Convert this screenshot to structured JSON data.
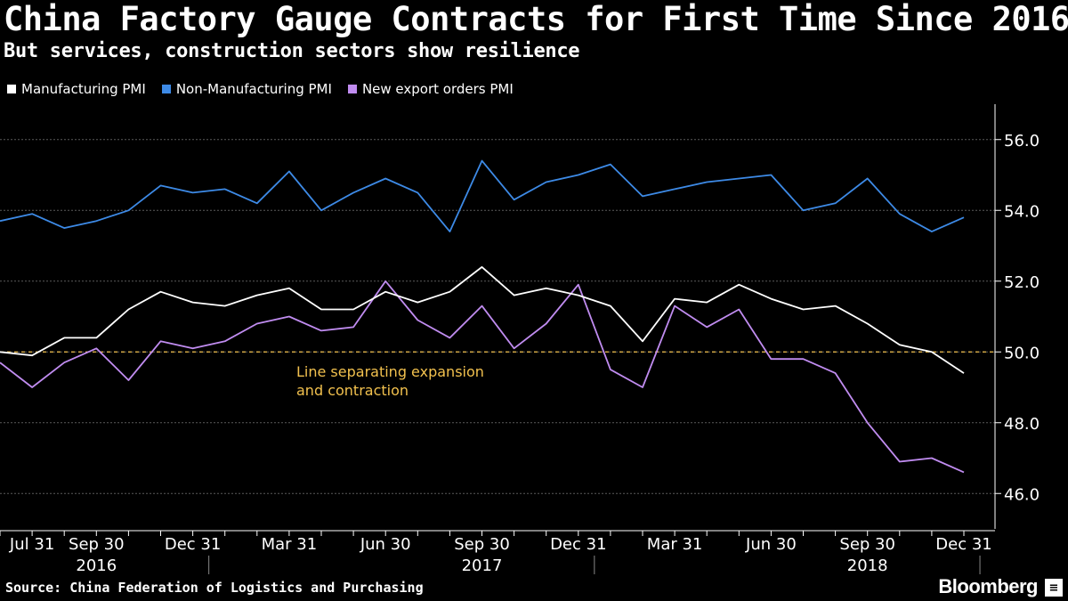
{
  "header": {
    "title": "China Factory Gauge Contracts for First Time Since 2016",
    "subtitle": "But services, construction sectors show resilience"
  },
  "footer": {
    "source": "Source: China Federation of Logistics and Purchasing",
    "brand": "Bloomberg",
    "brand_icon": "Bloomberg terminal icon"
  },
  "chart_data": {
    "type": "line",
    "title": "China Factory Gauge Contracts for First Time Since 2016",
    "subtitle": "But services, construction sectors show resilience",
    "xlabel": "",
    "ylabel": "",
    "ylim": [
      45,
      57
    ],
    "y_axis_side": "right",
    "y_ticks": [
      46.0,
      48.0,
      50.0,
      52.0,
      54.0,
      56.0
    ],
    "y_tick_labels": [
      "46.0",
      "48.0",
      "50.0",
      "52.0",
      "54.0",
      "56.0"
    ],
    "x": [
      "2016-06-30",
      "2016-07-31",
      "2016-08-31",
      "2016-09-30",
      "2016-10-31",
      "2016-11-30",
      "2016-12-31",
      "2017-01-31",
      "2017-02-28",
      "2017-03-31",
      "2017-04-30",
      "2017-05-31",
      "2017-06-30",
      "2017-07-31",
      "2017-08-31",
      "2017-09-30",
      "2017-10-31",
      "2017-11-30",
      "2017-12-31",
      "2018-01-31",
      "2018-02-28",
      "2018-03-31",
      "2018-04-30",
      "2018-05-31",
      "2018-06-30",
      "2018-07-31",
      "2018-08-31",
      "2018-09-30",
      "2018-10-31",
      "2018-11-30",
      "2018-12-31"
    ],
    "x_tick_labels": [
      {
        "label": "Jul 31",
        "index": 1
      },
      {
        "label": "Sep 30",
        "index": 3
      },
      {
        "label": "Dec 31",
        "index": 6
      },
      {
        "label": "Mar 31",
        "index": 9
      },
      {
        "label": "Jun 30",
        "index": 12
      },
      {
        "label": "Sep 30",
        "index": 15
      },
      {
        "label": "Dec 31",
        "index": 18
      },
      {
        "label": "Mar 31",
        "index": 21
      },
      {
        "label": "Jun 30",
        "index": 24
      },
      {
        "label": "Sep 30",
        "index": 27
      },
      {
        "label": "Dec 31",
        "index": 30
      }
    ],
    "year_labels": [
      {
        "label": "2016",
        "center_index": 3
      },
      {
        "label": "2017",
        "center_index": 15
      },
      {
        "label": "2018",
        "center_index": 27
      }
    ],
    "year_dividers": [
      6.5,
      18.5,
      30.5
    ],
    "grid": true,
    "legend_position": "top-left",
    "series": [
      {
        "name": "Manufacturing PMI",
        "color": "#ffffff",
        "values": [
          50.0,
          49.9,
          50.4,
          50.4,
          51.2,
          51.7,
          51.4,
          51.3,
          51.6,
          51.8,
          51.2,
          51.2,
          51.7,
          51.4,
          51.7,
          52.4,
          51.6,
          51.8,
          51.6,
          51.3,
          50.3,
          51.5,
          51.4,
          51.9,
          51.5,
          51.2,
          51.3,
          50.8,
          50.2,
          50.0,
          49.4
        ]
      },
      {
        "name": "Non-Manufacturing PMI",
        "color": "#3d8ae6",
        "values": [
          53.7,
          53.9,
          53.5,
          53.7,
          54.0,
          54.7,
          54.5,
          54.6,
          54.2,
          55.1,
          54.0,
          54.5,
          54.9,
          54.5,
          53.4,
          55.4,
          54.3,
          54.8,
          55.0,
          55.3,
          54.4,
          54.6,
          54.8,
          54.9,
          55.0,
          54.0,
          54.2,
          54.9,
          53.9,
          53.4,
          53.8
        ]
      },
      {
        "name": "New export orders PMI",
        "color": "#c08cf0",
        "values": [
          49.7,
          49.0,
          49.7,
          50.1,
          49.2,
          50.3,
          50.1,
          50.3,
          50.8,
          51.0,
          50.6,
          50.7,
          52.0,
          50.9,
          50.4,
          51.3,
          50.1,
          50.8,
          51.9,
          49.5,
          49.0,
          51.3,
          50.7,
          51.2,
          49.8,
          49.8,
          49.4,
          48.0,
          46.9,
          47.0,
          46.6
        ]
      }
    ],
    "reference_line": {
      "value": 50.0,
      "color": "#f2c14e",
      "label_lines": [
        "Line separating expansion",
        "and contraction"
      ]
    }
  }
}
